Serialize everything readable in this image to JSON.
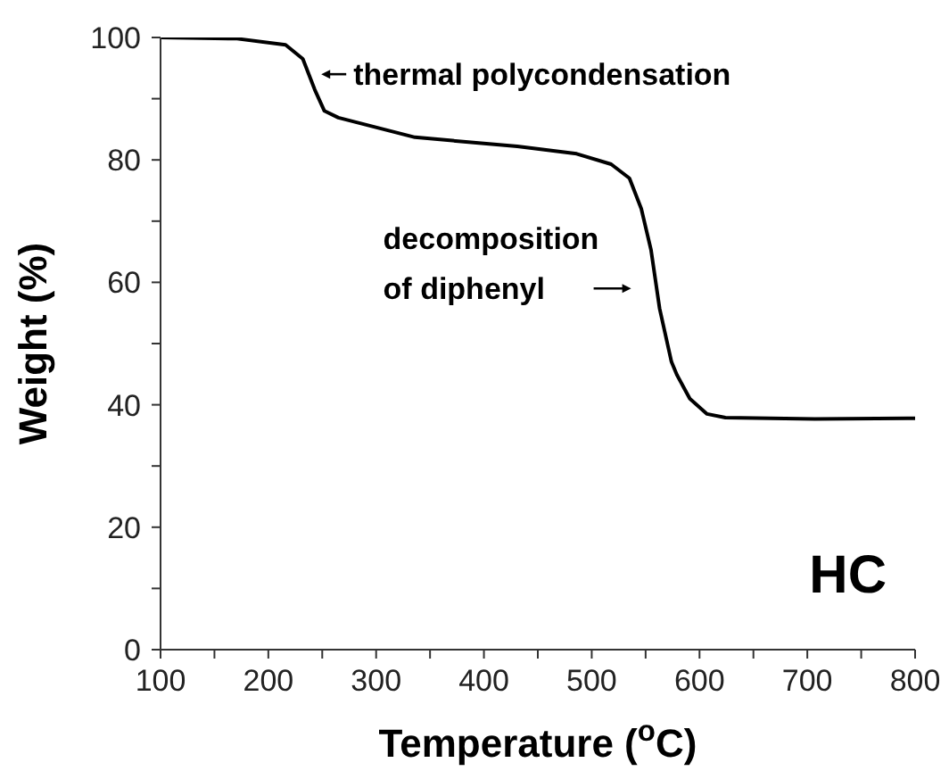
{
  "chart_data": {
    "type": "line",
    "xlabel": "Temperature ($^{o}$C)",
    "ylabel": "Weight (%)",
    "x": [
      100,
      171,
      216,
      232,
      243,
      252,
      265,
      336,
      431,
      486,
      518,
      535,
      546,
      555,
      563,
      574,
      579,
      591,
      607,
      624,
      707,
      800
    ],
    "series": [
      {
        "color": "#000000",
        "values": [
          100,
          99.8,
          98.8,
          96.5,
          91.5,
          88,
          86.9,
          83.7,
          82.2,
          81,
          79.3,
          77,
          72,
          65.3,
          55.7,
          47,
          44.9,
          41,
          38.5,
          37.9,
          37.7,
          37.8
        ]
      }
    ],
    "xlim": [
      100,
      800
    ],
    "xticks": [
      100,
      {
        "value": 150,
        "label": null
      },
      200,
      {
        "value": 250,
        "label": null
      },
      300,
      {
        "value": 350,
        "label": null
      },
      400,
      {
        "value": 450,
        "label": null
      },
      500,
      {
        "value": 550,
        "label": null
      },
      600,
      {
        "value": 650,
        "label": null
      },
      700,
      {
        "value": 750,
        "label": null
      },
      800
    ],
    "ylim": [
      0,
      100
    ],
    "yticks": [
      0,
      {
        "value": 10,
        "label": null
      },
      20,
      {
        "value": 30,
        "label": null
      },
      40,
      {
        "value": 50,
        "label": null
      },
      60,
      {
        "value": 70,
        "label": null
      },
      80,
      {
        "value": 90,
        "label": null
      },
      100
    ],
    "grid": false,
    "legend": false,
    "marker": "none",
    "line_style": "solid",
    "annotations": [
      "thermal polycondensation",
      "decomposition of diphenyl",
      "HC"
    ]
  }
}
